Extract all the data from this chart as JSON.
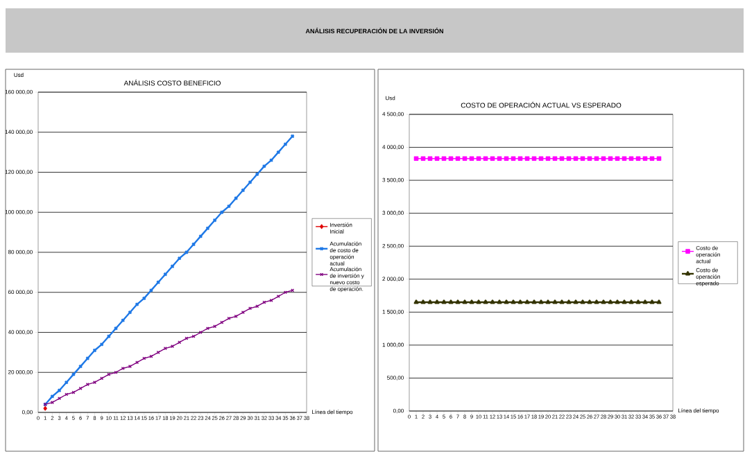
{
  "chart_data": [
    {
      "type": "line",
      "title": "ANÁLISIS COSTO BENEFICIO",
      "xlabel": "Línea del tiempo",
      "ylabel": "Usd",
      "annotations": [
        "ANÁLISIS RECUPERACIÓN DE LA INVERSIÓN"
      ],
      "x": [
        1,
        2,
        3,
        4,
        5,
        6,
        7,
        8,
        9,
        10,
        11,
        12,
        13,
        14,
        15,
        16,
        17,
        18,
        19,
        20,
        21,
        22,
        23,
        24,
        25,
        26,
        27,
        28,
        29,
        30,
        31,
        32,
        33,
        34,
        35,
        36
      ],
      "series": [
        {
          "name": "Inversión Inicial",
          "color": "#e00000",
          "marker": "diamond",
          "x": [
            1
          ],
          "values": [
            2000
          ]
        },
        {
          "name": "Acumulación de costo de operación actual",
          "color": "#1e78e6",
          "marker": "cross",
          "values": [
            4000,
            8000,
            11000,
            15000,
            19000,
            23000,
            27000,
            31000,
            34000,
            38000,
            42000,
            46000,
            50000,
            54000,
            57000,
            61000,
            65000,
            69000,
            73000,
            77000,
            80000,
            84000,
            88000,
            92000,
            96000,
            100000,
            103000,
            107000,
            111000,
            115000,
            119000,
            123000,
            126000,
            130000,
            134000,
            138000
          ]
        },
        {
          "name": "Acumulación de inversión y nuevo costo de operación.",
          "color": "#800080",
          "marker": "cross",
          "values": [
            4000,
            5000,
            7000,
            9000,
            10000,
            12000,
            14000,
            15000,
            17000,
            19000,
            20000,
            22000,
            23000,
            25000,
            27000,
            28000,
            30000,
            32000,
            33000,
            35000,
            37000,
            38000,
            40000,
            42000,
            43000,
            45000,
            47000,
            48000,
            50000,
            52000,
            53000,
            55000,
            56000,
            58000,
            60000,
            61000
          ]
        }
      ],
      "xlim": [
        0,
        38
      ],
      "xticks": [
        0,
        1,
        2,
        3,
        4,
        5,
        6,
        7,
        8,
        9,
        10,
        11,
        12,
        13,
        14,
        15,
        16,
        17,
        18,
        19,
        20,
        21,
        22,
        23,
        24,
        25,
        26,
        27,
        28,
        29,
        30,
        31,
        32,
        33,
        34,
        35,
        36,
        37,
        38
      ],
      "ylim": [
        0,
        160000
      ],
      "yticks": [
        {
          "value": 0,
          "label": "0,00"
        },
        {
          "value": 20000,
          "label": "20 000,00"
        },
        {
          "value": 40000,
          "label": "40 000,00"
        },
        {
          "value": 60000,
          "label": "60 000,00"
        },
        {
          "value": 80000,
          "label": "80 000,00"
        },
        {
          "value": 100000,
          "label": "100 000,00"
        },
        {
          "value": 120000,
          "label": "120 000,00"
        },
        {
          "value": 140000,
          "label": "140 000,00"
        },
        {
          "value": 160000,
          "label": "160 000,00"
        }
      ],
      "grid": "y",
      "legend": "right"
    },
    {
      "type": "line",
      "title": "COSTO DE OPERACIÓN ACTUAL VS ESPERADO",
      "xlabel": "Línea del tiempo",
      "ylabel": "Usd",
      "x": [
        1,
        2,
        3,
        4,
        5,
        6,
        7,
        8,
        9,
        10,
        11,
        12,
        13,
        14,
        15,
        16,
        17,
        18,
        19,
        20,
        21,
        22,
        23,
        24,
        25,
        26,
        27,
        28,
        29,
        30,
        31,
        32,
        33,
        34,
        35,
        36
      ],
      "series": [
        {
          "name": "Costo de operación actual",
          "color": "#ff00ff",
          "marker": "square",
          "values": [
            3830,
            3830,
            3830,
            3830,
            3830,
            3830,
            3830,
            3830,
            3830,
            3830,
            3830,
            3830,
            3830,
            3830,
            3830,
            3830,
            3830,
            3830,
            3830,
            3830,
            3830,
            3830,
            3830,
            3830,
            3830,
            3830,
            3830,
            3830,
            3830,
            3830,
            3830,
            3830,
            3830,
            3830,
            3830,
            3830
          ]
        },
        {
          "name": "Costo de operación esperado",
          "color": "#333300",
          "marker": "triangle",
          "values": [
            1650,
            1650,
            1650,
            1650,
            1650,
            1650,
            1650,
            1650,
            1650,
            1650,
            1650,
            1650,
            1650,
            1650,
            1650,
            1650,
            1650,
            1650,
            1650,
            1650,
            1650,
            1650,
            1650,
            1650,
            1650,
            1650,
            1650,
            1650,
            1650,
            1650,
            1650,
            1650,
            1650,
            1650,
            1650,
            1650
          ]
        }
      ],
      "xlim": [
        0,
        38
      ],
      "xticks": [
        0,
        1,
        2,
        3,
        4,
        5,
        6,
        7,
        8,
        9,
        10,
        11,
        12,
        13,
        14,
        15,
        16,
        17,
        18,
        19,
        20,
        21,
        22,
        23,
        24,
        25,
        26,
        27,
        28,
        29,
        30,
        31,
        32,
        33,
        34,
        35,
        36,
        37,
        38
      ],
      "ylim": [
        0,
        4500
      ],
      "yticks": [
        {
          "value": 0,
          "label": "0,00"
        },
        {
          "value": 500,
          "label": "500,00"
        },
        {
          "value": 1000,
          "label": "1 000,00"
        },
        {
          "value": 1500,
          "label": "1 500,00"
        },
        {
          "value": 2000,
          "label": "2 000,00"
        },
        {
          "value": 2500,
          "label": "2 500,00"
        },
        {
          "value": 3000,
          "label": "3 000,00"
        },
        {
          "value": 3500,
          "label": "3 500,00"
        },
        {
          "value": 4000,
          "label": "4 000,00"
        },
        {
          "value": 4500,
          "label": "4 500,00"
        }
      ],
      "grid": "y",
      "legend": "right"
    }
  ]
}
